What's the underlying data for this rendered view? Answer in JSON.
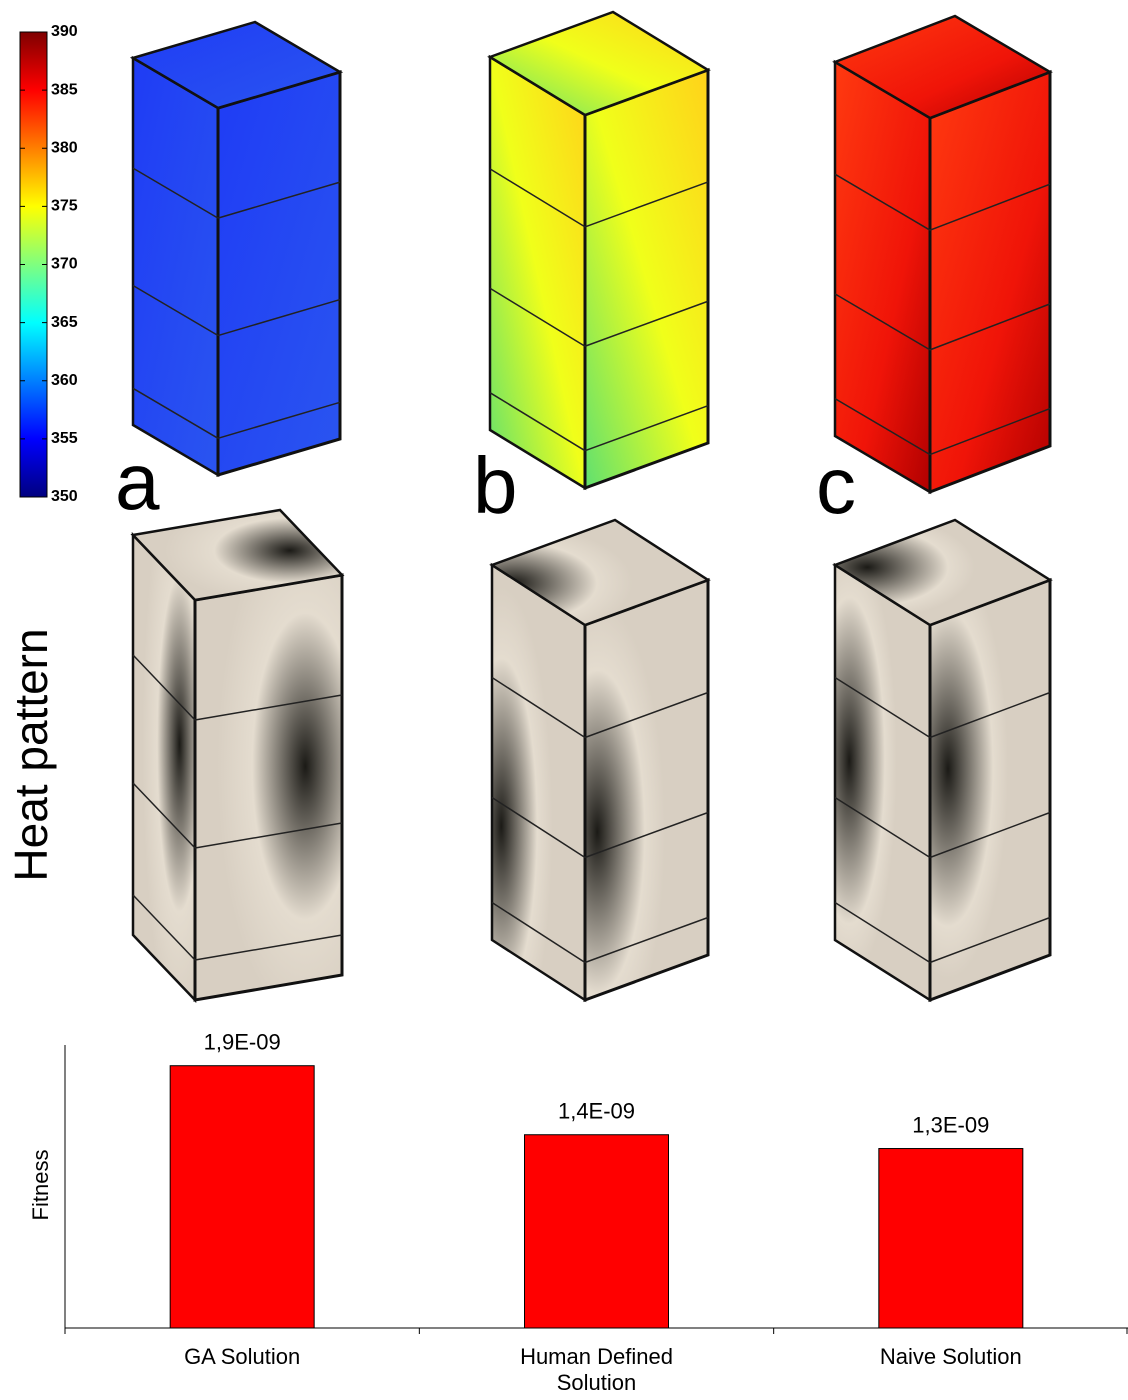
{
  "chart_data": [
    {
      "type": "colorbar",
      "colormap": "jet",
      "ylim": [
        350,
        390
      ],
      "yticks": [
        350,
        355,
        360,
        365,
        370,
        375,
        380,
        385,
        390
      ]
    },
    {
      "type": "bar",
      "ylabel": "Fitness",
      "categories": [
        "GA Solution",
        "Human Defined Solution",
        "Naive Solution"
      ],
      "values": [
        1.9e-09,
        1.4e-09,
        1.3e-09
      ],
      "value_labels": [
        "1,9E-09",
        "1,4E-09",
        "1,3E-09"
      ],
      "color": "#ff0000",
      "ylim": [
        0,
        2.05e-09
      ]
    }
  ],
  "panel_labels": [
    "a",
    "b",
    "c"
  ],
  "row_label": "Heat pattern"
}
